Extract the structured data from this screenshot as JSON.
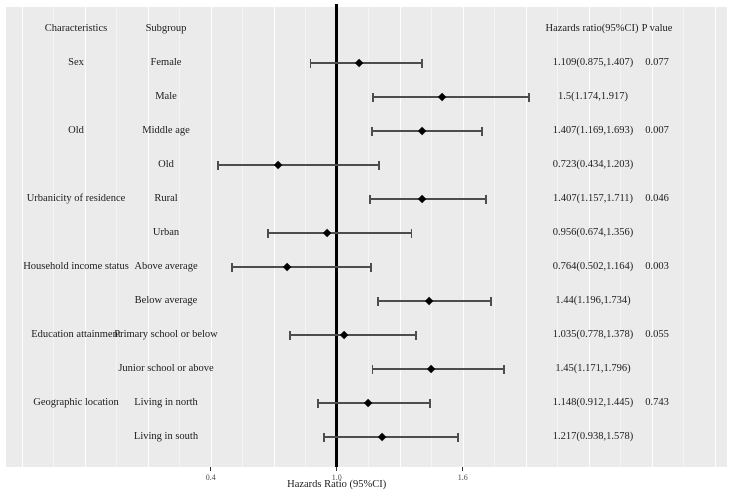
{
  "figure": {
    "headers": {
      "characteristics": "Characteristics",
      "subgroup": "Subgroup",
      "hazards_ratio": "Hazards ratio(95%CI)",
      "p_value": "P value"
    }
  },
  "chart_data": {
    "type": "forest",
    "title": "",
    "xlabel": "Hazards Ratio (95%CI)",
    "x_axis": {
      "ticks": [
        0.4,
        1.0,
        1.6
      ],
      "tick_labels": [
        "0.4",
        "1.0",
        "1.6"
      ],
      "reference_value": 1.0,
      "scale": "linear",
      "grid": "on"
    },
    "colors": {
      "panel_background": "#ebebeb",
      "gridline": "#ffffff",
      "reference_line": "#000000",
      "error_bar": "#4d4d4d",
      "point_marker": "#000000",
      "text": "#1c1c1c"
    },
    "rows": [
      {
        "characteristic": "Sex",
        "subgroup": "Female",
        "hr": 1.109,
        "ci_low": 0.875,
        "ci_high": 1.407,
        "label": "1.109(0.875,1.407)",
        "p_value": "0.077"
      },
      {
        "characteristic": "",
        "subgroup": "Male",
        "hr": 1.5,
        "ci_low": 1.174,
        "ci_high": 1.917,
        "label": "1.5(1.174,1.917)",
        "p_value": ""
      },
      {
        "characteristic": "Old",
        "subgroup": "Middle age",
        "hr": 1.407,
        "ci_low": 1.169,
        "ci_high": 1.693,
        "label": "1.407(1.169,1.693)",
        "p_value": "0.007"
      },
      {
        "characteristic": "",
        "subgroup": "Old",
        "hr": 0.723,
        "ci_low": 0.434,
        "ci_high": 1.203,
        "label": "0.723(0.434,1.203)",
        "p_value": ""
      },
      {
        "characteristic": "Urbanicity of residence",
        "subgroup": "Rural",
        "hr": 1.407,
        "ci_low": 1.157,
        "ci_high": 1.711,
        "label": "1.407(1.157,1.711)",
        "p_value": "0.046"
      },
      {
        "characteristic": "",
        "subgroup": "Urban",
        "hr": 0.956,
        "ci_low": 0.674,
        "ci_high": 1.356,
        "label": "0.956(0.674,1.356)",
        "p_value": ""
      },
      {
        "characteristic": "Household income status",
        "subgroup": "Above average",
        "hr": 0.764,
        "ci_low": 0.502,
        "ci_high": 1.164,
        "label": "0.764(0.502,1.164)",
        "p_value": "0.003"
      },
      {
        "characteristic": "",
        "subgroup": "Below average",
        "hr": 1.44,
        "ci_low": 1.196,
        "ci_high": 1.734,
        "label": "1.44(1.196,1.734)",
        "p_value": ""
      },
      {
        "characteristic": "Education attainment",
        "subgroup": "Primary school or below",
        "hr": 1.035,
        "ci_low": 0.778,
        "ci_high": 1.378,
        "label": "1.035(0.778,1.378)",
        "p_value": "0.055"
      },
      {
        "characteristic": "",
        "subgroup": "Junior school or above",
        "hr": 1.45,
        "ci_low": 1.171,
        "ci_high": 1.796,
        "label": "1.45(1.171,1.796)",
        "p_value": ""
      },
      {
        "characteristic": "Geographic location",
        "subgroup": "Living in north",
        "hr": 1.148,
        "ci_low": 0.912,
        "ci_high": 1.445,
        "label": "1.148(0.912,1.445)",
        "p_value": "0.743"
      },
      {
        "characteristic": "",
        "subgroup": "Living in south",
        "hr": 1.217,
        "ci_low": 0.938,
        "ci_high": 1.578,
        "label": "1.217(0.938,1.578)",
        "p_value": ""
      }
    ]
  }
}
